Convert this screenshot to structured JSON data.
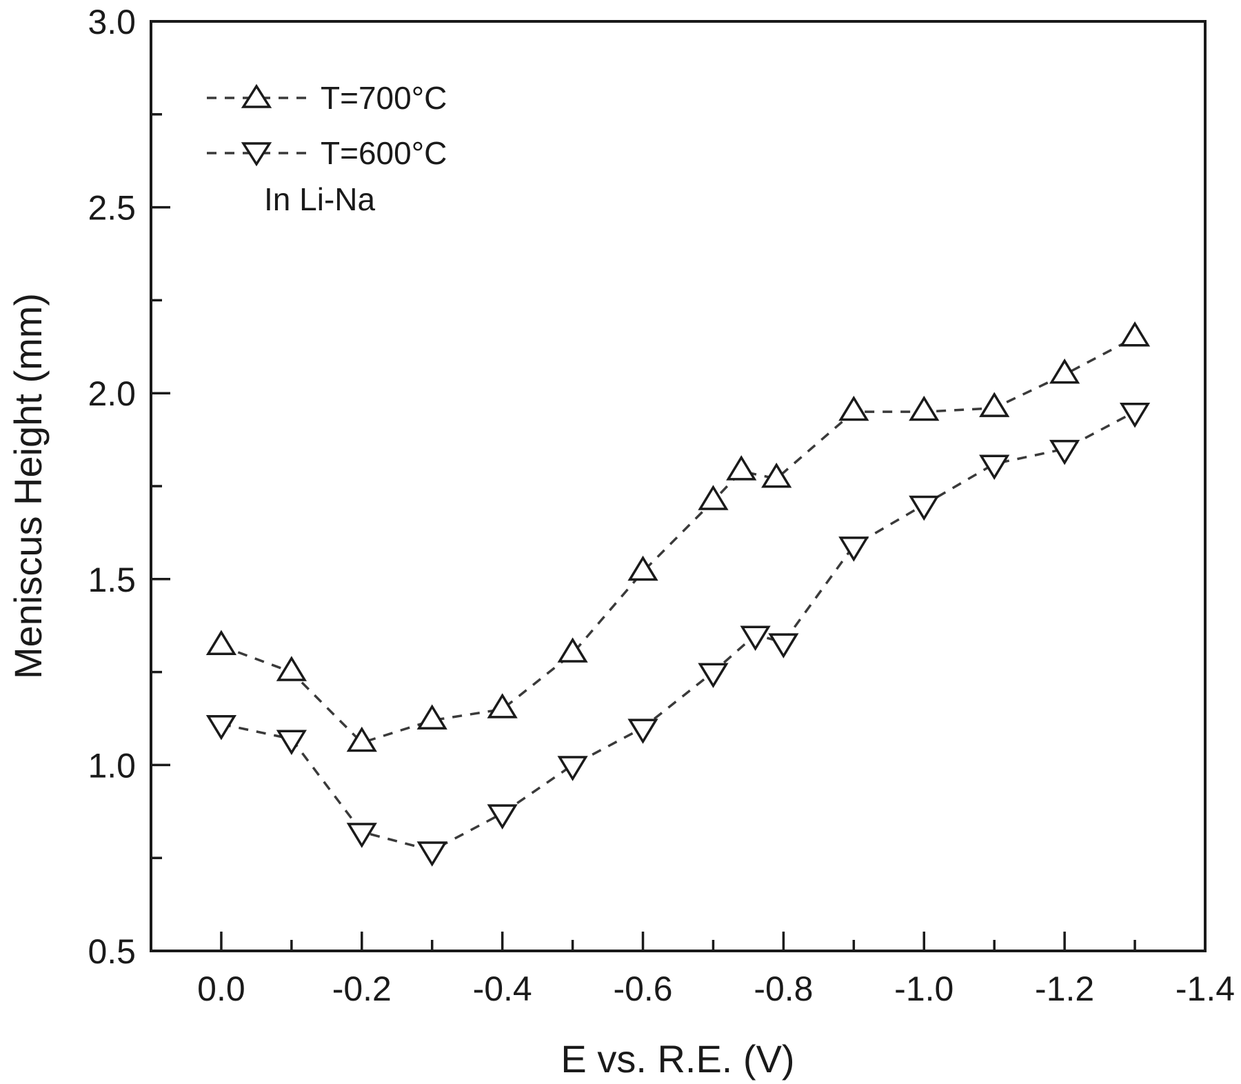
{
  "chart_data": {
    "type": "scatter",
    "title": "",
    "xlabel": "E vs. R.E. (V)",
    "ylabel": "Meniscus Height (mm)",
    "xlim": [
      0.1,
      -1.4
    ],
    "ylim": [
      0.5,
      3.0
    ],
    "x_ticks": [
      0.0,
      -0.2,
      -0.4,
      -0.6,
      -0.8,
      -1.0,
      -1.2,
      -1.4
    ],
    "x_tick_labels": [
      "0.0",
      "-0.2",
      "-0.4",
      "-0.6",
      "-0.8",
      "-1.0",
      "-1.2",
      "-1.4"
    ],
    "x_minor_ticks": [
      -0.1,
      -0.3,
      -0.5,
      -0.7,
      -0.9,
      -1.1,
      -1.3
    ],
    "y_ticks": [
      0.5,
      1.0,
      1.5,
      2.0,
      2.5,
      3.0
    ],
    "y_tick_labels": [
      "0.5",
      "1.0",
      "1.5",
      "2.0",
      "2.5",
      "3.0"
    ],
    "y_minor_ticks": [
      0.75,
      1.25,
      1.75,
      2.25,
      2.75
    ],
    "grid": false,
    "legend_position": "upper left",
    "annotations": [
      "In Li-Na"
    ],
    "series": [
      {
        "name": "T=700°C",
        "marker": "triangle-up",
        "line_style": "dashed",
        "x": [
          0.0,
          -0.1,
          -0.2,
          -0.3,
          -0.4,
          -0.5,
          -0.6,
          -0.7,
          -0.74,
          -0.79,
          -0.9,
          -1.0,
          -1.1,
          -1.2,
          -1.3
        ],
        "y": [
          1.32,
          1.25,
          1.06,
          1.12,
          1.15,
          1.3,
          1.52,
          1.71,
          1.79,
          1.77,
          1.95,
          1.95,
          1.96,
          2.05,
          2.15
        ]
      },
      {
        "name": "T=600°C",
        "marker": "triangle-down",
        "line_style": "dashed",
        "x": [
          0.0,
          -0.1,
          -0.2,
          -0.3,
          -0.4,
          -0.5,
          -0.6,
          -0.7,
          -0.76,
          -0.8,
          -0.9,
          -1.0,
          -1.1,
          -1.2,
          -1.3
        ],
        "y": [
          1.11,
          1.07,
          0.82,
          0.77,
          0.87,
          1.0,
          1.1,
          1.25,
          1.35,
          1.33,
          1.59,
          1.7,
          1.81,
          1.85,
          1.95
        ]
      }
    ]
  },
  "legend": {
    "items": [
      {
        "label": "T=700°C",
        "marker": "triangle-up"
      },
      {
        "label": "T=600°C",
        "marker": "triangle-down"
      }
    ],
    "note": "In Li-Na"
  },
  "colors": {
    "axis": "#1a1a1a",
    "series_line": "#3a3a3a",
    "marker_fill": "#ffffff",
    "background": "#ffffff"
  }
}
